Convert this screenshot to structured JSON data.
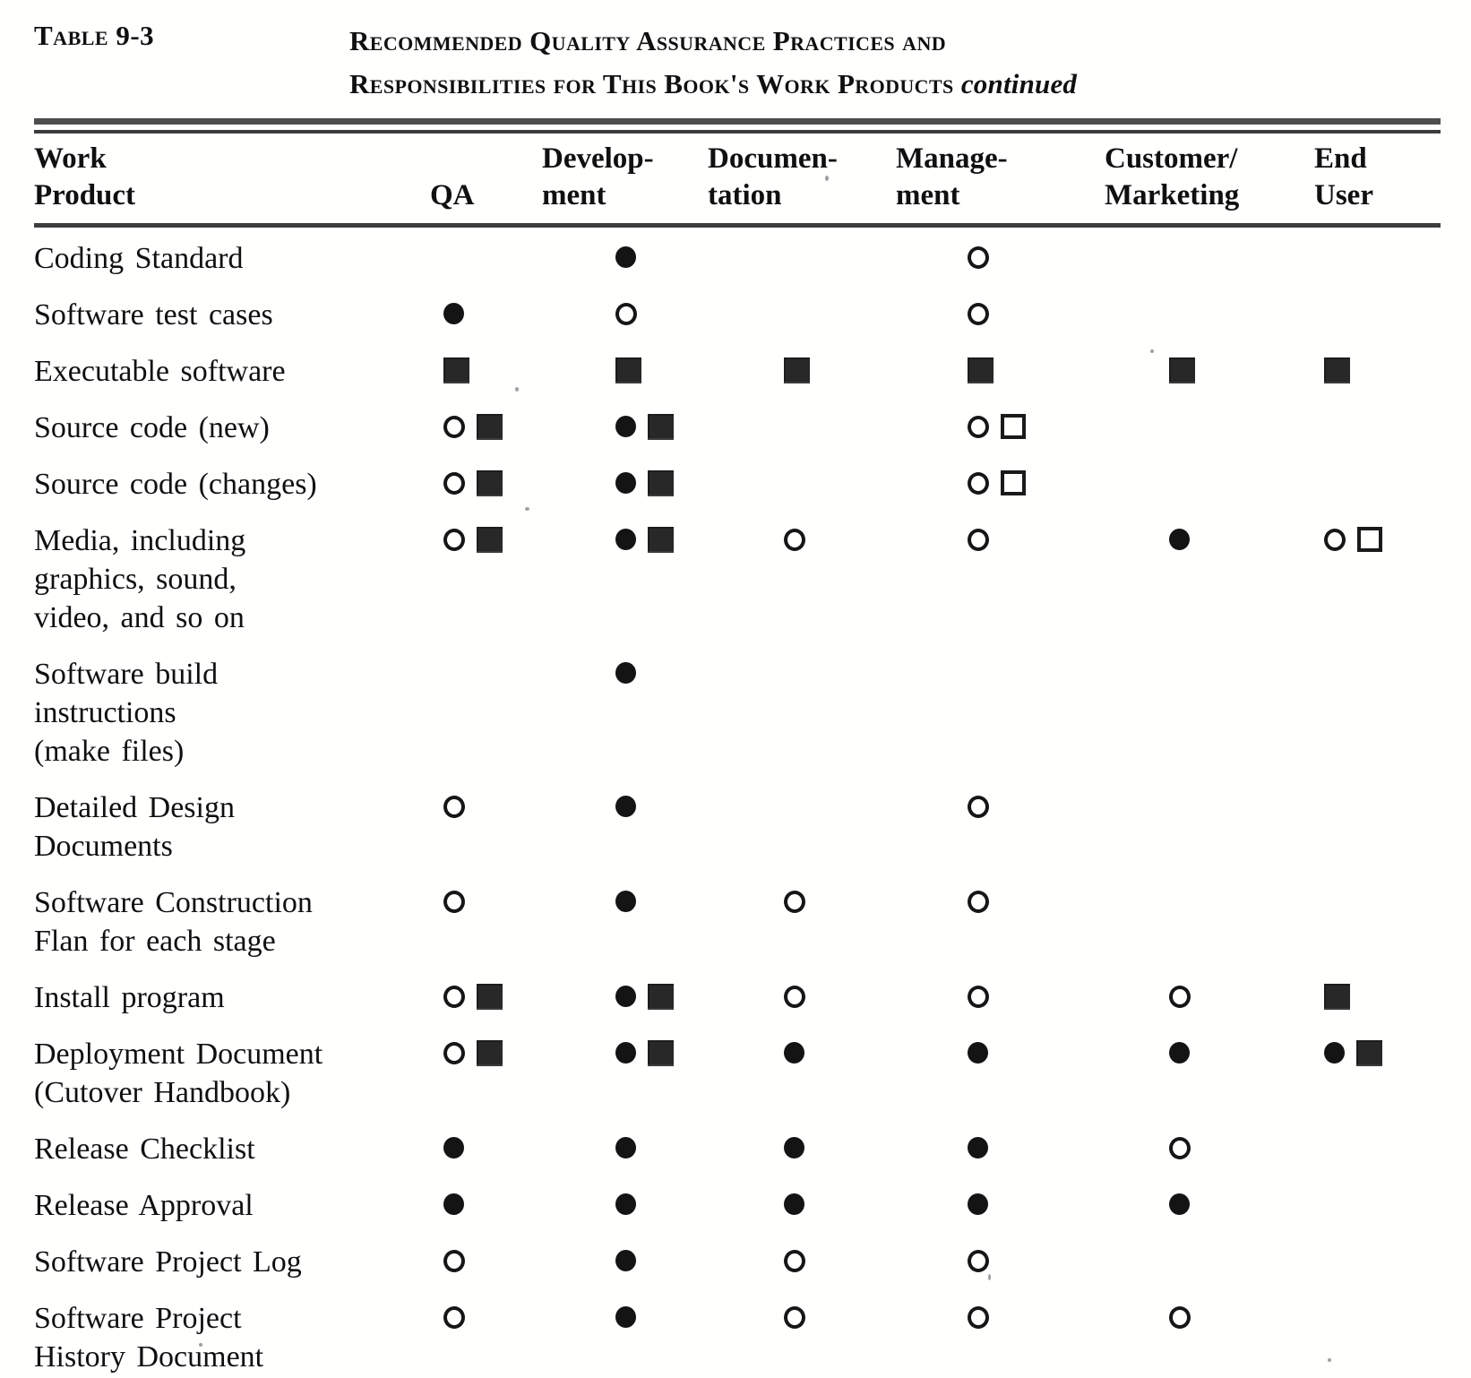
{
  "table_label": "Table 9-3",
  "title": {
    "line1": "Recommended Quality Assurance Practices and",
    "line2": "Responsibilities for This Book's Work Products",
    "continued": "continued"
  },
  "columns": [
    {
      "id": "work_product",
      "line1": "Work",
      "line2": "Product"
    },
    {
      "id": "qa",
      "line1": "",
      "line2": "QA"
    },
    {
      "id": "development",
      "line1": "Develop-",
      "line2": "ment"
    },
    {
      "id": "documentation",
      "line1": "Documen-",
      "line2": "tation"
    },
    {
      "id": "management",
      "line1": "Manage-",
      "line2": "ment"
    },
    {
      "id": "customer_marketing",
      "line1": "Customer/",
      "line2": "Marketing"
    },
    {
      "id": "end_user",
      "line1": "End",
      "line2": "User"
    }
  ],
  "symbols": {
    "filled_circle": "●",
    "open_circle": "○",
    "filled_square": "■",
    "open_square": "□"
  },
  "rows": [
    {
      "work_product": [
        "Coding Standard"
      ],
      "qa": [],
      "development": [
        "filled_circle"
      ],
      "documentation": [],
      "management": [
        "open_circle"
      ],
      "customer_marketing": [],
      "end_user": []
    },
    {
      "work_product": [
        "Software test cases"
      ],
      "qa": [
        "filled_circle"
      ],
      "development": [
        "open_circle"
      ],
      "documentation": [],
      "management": [
        "open_circle"
      ],
      "customer_marketing": [],
      "end_user": []
    },
    {
      "work_product": [
        "Executable software"
      ],
      "qa": [
        "filled_square"
      ],
      "development": [
        "filled_square"
      ],
      "documentation": [
        "filled_square"
      ],
      "management": [
        "filled_square"
      ],
      "customer_marketing": [
        "filled_square"
      ],
      "end_user": [
        "filled_square"
      ]
    },
    {
      "work_product": [
        "Source code (new)"
      ],
      "qa": [
        "open_circle",
        "filled_square"
      ],
      "development": [
        "filled_circle",
        "filled_square"
      ],
      "documentation": [],
      "management": [
        "open_circle",
        "open_square"
      ],
      "customer_marketing": [],
      "end_user": []
    },
    {
      "work_product": [
        "Source code (changes)"
      ],
      "qa": [
        "open_circle",
        "filled_square"
      ],
      "development": [
        "filled_circle",
        "filled_square"
      ],
      "documentation": [],
      "management": [
        "open_circle",
        "open_square"
      ],
      "customer_marketing": [],
      "end_user": []
    },
    {
      "work_product": [
        "Media, including",
        "graphics, sound,",
        "video, and so on"
      ],
      "qa": [
        "open_circle",
        "filled_square"
      ],
      "development": [
        "filled_circle",
        "filled_square"
      ],
      "documentation": [
        "open_circle"
      ],
      "management": [
        "open_circle"
      ],
      "customer_marketing": [
        "filled_circle"
      ],
      "end_user": [
        "open_circle",
        "open_square"
      ]
    },
    {
      "work_product": [
        "Software build",
        "instructions",
        "(make files)"
      ],
      "qa": [],
      "development": [
        "filled_circle"
      ],
      "documentation": [],
      "management": [],
      "customer_marketing": [],
      "end_user": []
    },
    {
      "work_product": [
        "Detailed Design",
        "Documents"
      ],
      "qa": [
        "open_circle"
      ],
      "development": [
        "filled_circle"
      ],
      "documentation": [],
      "management": [
        "open_circle"
      ],
      "customer_marketing": [],
      "end_user": []
    },
    {
      "work_product": [
        "Software Construction",
        "Flan for each stage"
      ],
      "qa": [
        "open_circle"
      ],
      "development": [
        "filled_circle"
      ],
      "documentation": [
        "open_circle"
      ],
      "management": [
        "open_circle"
      ],
      "customer_marketing": [],
      "end_user": []
    },
    {
      "work_product": [
        "Install program"
      ],
      "qa": [
        "open_circle",
        "filled_square"
      ],
      "development": [
        "filled_circle",
        "filled_square"
      ],
      "documentation": [
        "open_circle"
      ],
      "management": [
        "open_circle"
      ],
      "customer_marketing": [
        "open_circle"
      ],
      "end_user": [
        "filled_square"
      ]
    },
    {
      "work_product": [
        "Deployment Document",
        "(Cutover Handbook)"
      ],
      "qa": [
        "open_circle",
        "filled_square"
      ],
      "development": [
        "filled_circle",
        "filled_square"
      ],
      "documentation": [
        "filled_circle"
      ],
      "management": [
        "filled_circle"
      ],
      "customer_marketing": [
        "filled_circle"
      ],
      "end_user": [
        "filled_circle",
        "filled_square"
      ]
    },
    {
      "work_product": [
        "Release Checklist"
      ],
      "qa": [
        "filled_circle"
      ],
      "development": [
        "filled_circle"
      ],
      "documentation": [
        "filled_circle"
      ],
      "management": [
        "filled_circle"
      ],
      "customer_marketing": [
        "open_circle"
      ],
      "end_user": []
    },
    {
      "work_product": [
        "Release Approval"
      ],
      "qa": [
        "filled_circle"
      ],
      "development": [
        "filled_circle"
      ],
      "documentation": [
        "filled_circle"
      ],
      "management": [
        "filled_circle"
      ],
      "customer_marketing": [
        "filled_circle"
      ],
      "end_user": []
    },
    {
      "work_product": [
        "Software Project Log"
      ],
      "qa": [
        "open_circle"
      ],
      "development": [
        "filled_circle"
      ],
      "documentation": [
        "open_circle"
      ],
      "management": [
        "open_circle"
      ],
      "customer_marketing": [],
      "end_user": []
    },
    {
      "work_product": [
        "Software Project",
        "History Document"
      ],
      "qa": [
        "open_circle"
      ],
      "development": [
        "filled_circle"
      ],
      "documentation": [
        "open_circle"
      ],
      "management": [
        "open_circle"
      ],
      "customer_marketing": [
        "open_circle"
      ],
      "end_user": []
    }
  ]
}
